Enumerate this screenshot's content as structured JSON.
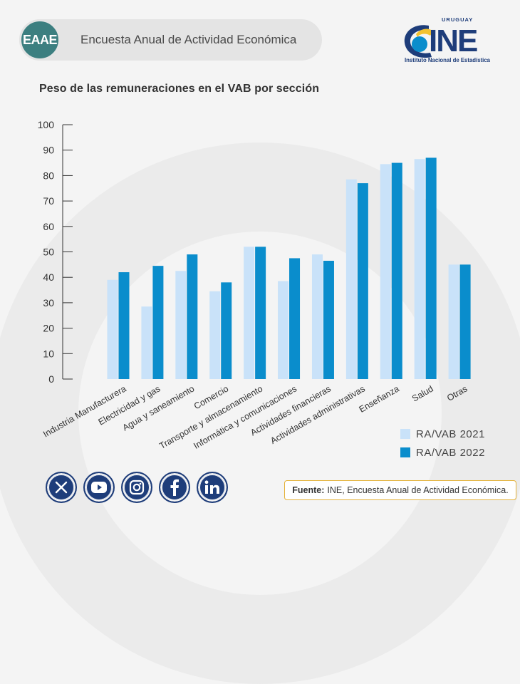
{
  "header": {
    "badge": "EAAE",
    "title": "Encuesta Anual de Actividad Económica"
  },
  "logo": {
    "country": "URUGUAY",
    "brand": "INE",
    "name": "Instituto Nacional de Estadística"
  },
  "colors": {
    "series_2021": "#c9e2f9",
    "series_2022": "#0a8dcc",
    "brand_dark": "#1e3d7a",
    "brand_yellow": "#f2c230",
    "accent_teal": "#3c7f80",
    "source_border": "#e4b23a"
  },
  "chart_data": {
    "type": "bar",
    "title": "Peso de las remuneraciones en el VAB por sección",
    "xlabel": "",
    "ylabel": "",
    "ylim": [
      0,
      100
    ],
    "yticks": [
      "0",
      "10",
      "20",
      "30",
      "40",
      "50",
      "60",
      "70",
      "80",
      "90",
      "100"
    ],
    "grid": false,
    "legend_position": "bottom-right",
    "categories": [
      "Industria Manufacturera",
      "Electricidad y gas",
      "Agua y saneamiento",
      "Comercio",
      "Transporte y almacenamiento",
      "Informática y comunicaciones",
      "Actividades financieras",
      "Actividades administrativas",
      "Enseñanza",
      "Salud",
      "Otras"
    ],
    "series": [
      {
        "name": "RA/VAB 2021",
        "values": [
          39,
          28.5,
          42.5,
          34.5,
          52,
          38.5,
          49,
          78.5,
          84.5,
          86.5,
          45
        ]
      },
      {
        "name": "RA/VAB 2022",
        "values": [
          42,
          44.5,
          49,
          38,
          52,
          47.5,
          46.5,
          77,
          85,
          87,
          45
        ]
      }
    ]
  },
  "social": {
    "icons": [
      "x-icon",
      "youtube-icon",
      "instagram-icon",
      "facebook-icon",
      "linkedin-icon"
    ]
  },
  "source": {
    "label": "Fuente:",
    "text": "INE, Encuesta Anual de Actividad Económica."
  }
}
